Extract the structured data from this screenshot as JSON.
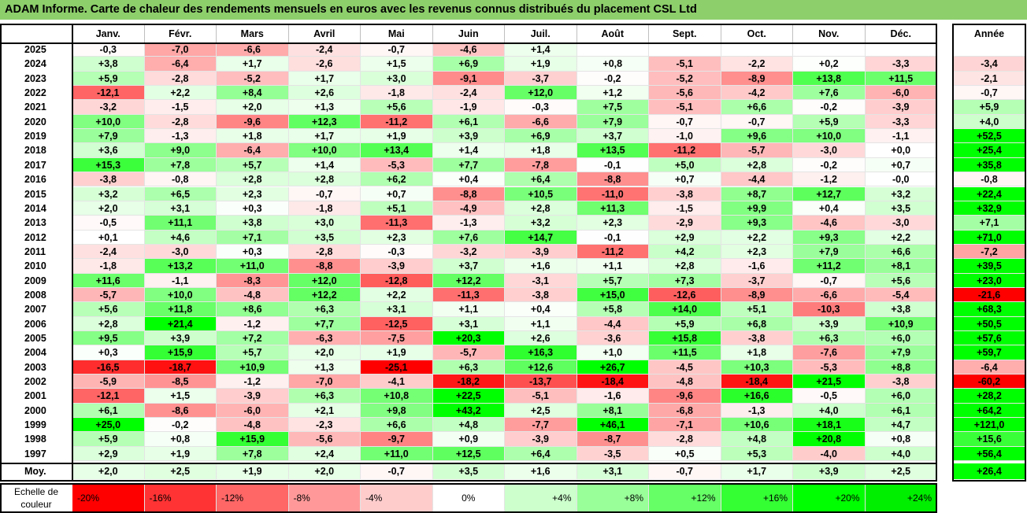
{
  "title": "ADAM Informe. Carte de chaleur des rendements mensuels en euros avec les revenus connus distribués du placement CSL Ltd",
  "chart_data": {
    "type": "heatmap",
    "columns": [
      "Janv.",
      "Févr.",
      "Mars",
      "Avril",
      "Mai",
      "Juin",
      "Juil.",
      "Août",
      "Sept.",
      "Oct.",
      "Nov.",
      "Déc."
    ],
    "annual_header": "Année",
    "rows": [
      {
        "year": "2025",
        "months": [
          -0.3,
          -7.0,
          -6.6,
          -2.4,
          -0.7,
          -4.6,
          1.4,
          null,
          null,
          null,
          null,
          null
        ],
        "annual": null
      },
      {
        "year": "2024",
        "months": [
          3.8,
          -6.4,
          1.7,
          -2.6,
          1.5,
          6.9,
          1.9,
          0.8,
          -5.1,
          -2.2,
          0.2,
          -3.3
        ],
        "annual": -3.4
      },
      {
        "year": "2023",
        "months": [
          5.9,
          -2.8,
          -5.2,
          1.7,
          3.0,
          -9.1,
          -3.7,
          -0.2,
          -5.2,
          -8.9,
          13.8,
          11.5
        ],
        "annual": -2.1
      },
      {
        "year": "2022",
        "months": [
          -12.1,
          2.2,
          8.4,
          2.6,
          -1.8,
          -2.4,
          12.0,
          1.2,
          -5.6,
          -4.2,
          7.6,
          -6.0
        ],
        "annual": -0.7
      },
      {
        "year": "2021",
        "months": [
          -3.2,
          -1.5,
          2.0,
          1.3,
          5.6,
          -1.9,
          -0.3,
          7.5,
          -5.1,
          6.6,
          -0.2,
          -3.9
        ],
        "annual": 5.9
      },
      {
        "year": "2020",
        "months": [
          10.0,
          -2.8,
          -9.6,
          12.3,
          -11.2,
          6.1,
          -6.6,
          7.9,
          -0.7,
          -0.7,
          5.9,
          -3.3
        ],
        "annual": 4.0
      },
      {
        "year": "2019",
        "months": [
          7.9,
          -1.3,
          1.8,
          1.7,
          1.9,
          3.9,
          6.9,
          3.7,
          -1.0,
          9.6,
          10.0,
          -1.1
        ],
        "annual": 52.5
      },
      {
        "year": "2018",
        "months": [
          3.6,
          9.0,
          -6.4,
          10.0,
          13.4,
          1.4,
          1.8,
          13.5,
          -11.2,
          -5.7,
          -3.0,
          0.0
        ],
        "annual": 25.4
      },
      {
        "year": "2017",
        "months": [
          15.3,
          7.8,
          5.7,
          1.4,
          -5.3,
          7.7,
          -7.8,
          -0.1,
          5.0,
          2.8,
          -0.2,
          0.7
        ],
        "annual": 35.8
      },
      {
        "year": "2016",
        "months": [
          -3.8,
          -0.8,
          2.8,
          2.8,
          6.2,
          0.4,
          6.4,
          -8.8,
          0.7,
          -4.4,
          -1.2,
          -0.0
        ],
        "annual": -0.8
      },
      {
        "year": "2015",
        "months": [
          3.2,
          6.5,
          2.3,
          -0.7,
          0.7,
          -8.8,
          10.5,
          -11.0,
          -3.8,
          8.7,
          12.7,
          3.2
        ],
        "annual": 22.4
      },
      {
        "year": "2014",
        "months": [
          2.0,
          3.1,
          0.3,
          -1.8,
          5.1,
          -4.9,
          2.8,
          11.3,
          -1.5,
          9.9,
          0.4,
          3.5
        ],
        "annual": 32.9
      },
      {
        "year": "2013",
        "months": [
          -0.5,
          11.1,
          3.8,
          3.0,
          -11.3,
          -1.3,
          3.2,
          2.3,
          -2.9,
          9.3,
          -4.6,
          -3.0
        ],
        "annual": 7.1
      },
      {
        "year": "2012",
        "months": [
          0.1,
          4.6,
          7.1,
          3.5,
          2.3,
          7.6,
          14.7,
          -0.1,
          2.9,
          2.2,
          9.3,
          2.2
        ],
        "annual": 71.0
      },
      {
        "year": "2011",
        "months": [
          -2.4,
          -3.0,
          0.3,
          -2.8,
          -0.3,
          -3.2,
          -3.9,
          -11.2,
          4.2,
          2.3,
          7.9,
          6.6
        ],
        "annual": -7.2
      },
      {
        "year": "2010",
        "months": [
          -1.8,
          13.2,
          11.0,
          -8.8,
          -3.9,
          3.7,
          1.6,
          1.1,
          2.8,
          -1.6,
          11.2,
          8.1
        ],
        "annual": 39.5
      },
      {
        "year": "2009",
        "months": [
          11.6,
          -1.1,
          -8.3,
          12.0,
          -12.8,
          12.2,
          -3.1,
          5.7,
          7.3,
          -3.7,
          -0.7,
          5.6
        ],
        "annual": 23.0
      },
      {
        "year": "2008",
        "months": [
          -5.7,
          10.0,
          -4.8,
          12.2,
          2.2,
          -11.3,
          -3.8,
          15.0,
          -12.6,
          -8.9,
          -6.6,
          -5.4
        ],
        "annual": -21.6
      },
      {
        "year": "2007",
        "months": [
          5.6,
          11.8,
          8.6,
          6.3,
          3.1,
          1.1,
          0.4,
          5.8,
          14.0,
          5.1,
          -10.3,
          3.8
        ],
        "annual": 68.3
      },
      {
        "year": "2006",
        "months": [
          2.8,
          21.4,
          -1.2,
          7.7,
          -12.5,
          3.1,
          1.1,
          -4.4,
          5.9,
          6.8,
          3.9,
          10.9
        ],
        "annual": 50.5
      },
      {
        "year": "2005",
        "months": [
          9.5,
          3.9,
          7.2,
          -6.3,
          -7.5,
          20.3,
          2.6,
          -3.6,
          15.8,
          -3.8,
          6.3,
          6.0
        ],
        "annual": 57.6
      },
      {
        "year": "2004",
        "months": [
          0.3,
          15.9,
          5.7,
          2.0,
          1.9,
          -5.7,
          16.3,
          1.0,
          11.5,
          1.8,
          -7.6,
          7.9
        ],
        "annual": 59.7
      },
      {
        "year": "2003",
        "months": [
          -16.5,
          -18.7,
          10.9,
          1.3,
          -25.1,
          6.3,
          12.6,
          26.7,
          -4.5,
          10.3,
          -5.3,
          8.8
        ],
        "annual": -6.4
      },
      {
        "year": "2002",
        "months": [
          -5.9,
          -8.5,
          -1.2,
          -7.0,
          -4.1,
          -18.2,
          -13.7,
          -18.4,
          -4.8,
          -18.4,
          21.5,
          -3.8
        ],
        "annual": -60.2
      },
      {
        "year": "2001",
        "months": [
          -12.1,
          1.5,
          -3.9,
          6.3,
          10.8,
          22.5,
          -5.1,
          -1.6,
          -9.6,
          16.6,
          -0.5,
          6.0
        ],
        "annual": 28.2
      },
      {
        "year": "2000",
        "months": [
          6.1,
          -8.6,
          -6.0,
          2.1,
          9.8,
          43.2,
          2.5,
          8.1,
          -6.8,
          -1.3,
          4.0,
          6.1
        ],
        "annual": 64.2
      },
      {
        "year": "1999",
        "months": [
          25.0,
          -0.2,
          -4.8,
          -2.3,
          6.6,
          4.8,
          -7.7,
          46.1,
          -7.1,
          10.6,
          18.1,
          4.7
        ],
        "annual": 121.0
      },
      {
        "year": "1998",
        "months": [
          5.9,
          0.8,
          15.9,
          -5.6,
          -9.7,
          0.9,
          -3.9,
          -8.7,
          -2.8,
          4.8,
          20.8,
          0.8
        ],
        "annual": 15.6
      },
      {
        "year": "1997",
        "months": [
          2.9,
          1.9,
          7.8,
          2.4,
          11.0,
          12.5,
          6.4,
          -3.5,
          0.5,
          5.3,
          -4.0,
          4.0
        ],
        "annual": 56.4
      }
    ],
    "average": {
      "label": "Moy.",
      "months": [
        2.0,
        2.5,
        1.9,
        2.0,
        -0.7,
        3.5,
        1.6,
        3.1,
        -0.7,
        1.7,
        3.9,
        2.5
      ],
      "annual": 26.4
    },
    "scale": {
      "label": "Echelle de couleur",
      "items": [
        {
          "label": "-20%",
          "value": -20,
          "color": "#ff0000"
        },
        {
          "label": "-16%",
          "value": -16,
          "color": "#ff3333"
        },
        {
          "label": "-12%",
          "value": -12,
          "color": "#ff6666"
        },
        {
          "label": "-8%",
          "value": -8,
          "color": "#ff9999"
        },
        {
          "label": "-4%",
          "value": -4,
          "color": "#ffcccc"
        },
        {
          "label": "0%",
          "value": 0,
          "color": "#ffffff"
        },
        {
          "label": "+4%",
          "value": 4,
          "color": "#ccffcc"
        },
        {
          "label": "+8%",
          "value": 8,
          "color": "#99ff99"
        },
        {
          "label": "+12%",
          "value": 12,
          "color": "#66ff66"
        },
        {
          "label": "+16%",
          "value": 16,
          "color": "#33ff33"
        },
        {
          "label": "+20%",
          "value": 20,
          "color": "#00ff00"
        },
        {
          "label": "+24%",
          "value": 24,
          "color": "#00ee00"
        }
      ]
    },
    "colors": {
      "title_bar": "#8dcf6b",
      "negative_max": "#ff0000",
      "positive_max": "#00ff00"
    }
  }
}
